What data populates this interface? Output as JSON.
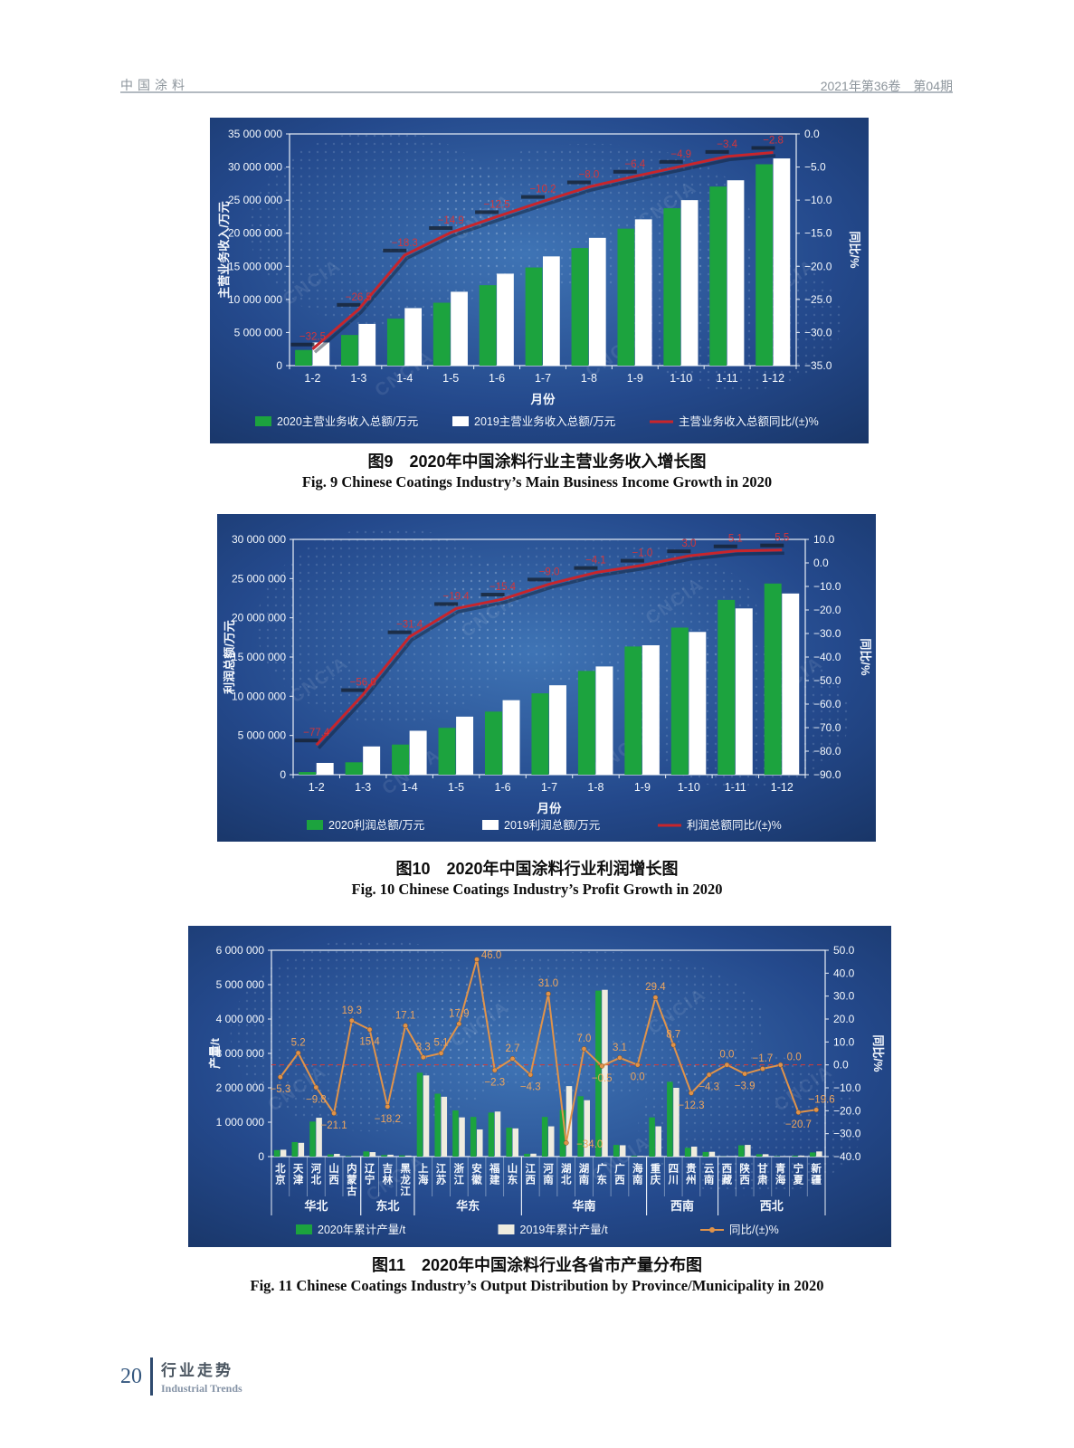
{
  "page": {
    "header": {
      "journal": "中国涂料",
      "issue": "2021年第36卷　第04期"
    },
    "footer": {
      "page_number": "20",
      "section_cn": "行业走势",
      "section_en": "Industrial Trends"
    }
  },
  "watermark": "CNCIA",
  "chart_data": [
    {
      "type": "bar+line",
      "caption_cn": "图9　2020年中国涂料行业主营业务收入增长图",
      "caption_en": "Fig. 9   Chinese Coatings Industry’s Main Business Income Growth in 2020",
      "xlabel": "月份",
      "ylabel_left": "主营业务收入/万元",
      "ylabel_right": "同比/%",
      "ylim_left": [
        0,
        35000000
      ],
      "ytick_step_left": 5000000,
      "ylim_right": [
        -35,
        0
      ],
      "ytick_step_right": 5,
      "categories": [
        "1-2",
        "1-3",
        "1-4",
        "1-5",
        "1-6",
        "1-7",
        "1-8",
        "1-9",
        "1-10",
        "1-11",
        "1-12"
      ],
      "series": [
        {
          "name": "2020主营业务收入总额/万元",
          "type": "bar",
          "color": "#1ca33e",
          "values": [
            2360000,
            4630000,
            7100000,
            9500000,
            12150000,
            14820000,
            17760000,
            20690000,
            23780000,
            27050000,
            30420000
          ]
        },
        {
          "name": "2019主营业务收入总额/万元",
          "type": "bar",
          "color": "#ffffff",
          "values": [
            3500000,
            6300000,
            8690000,
            11160000,
            13890000,
            16500000,
            19300000,
            22100000,
            25000000,
            28000000,
            31300000
          ]
        },
        {
          "name": "主营业务收入总额同比/(±)%",
          "type": "line",
          "color": "#c8252b",
          "values": [
            -32.5,
            -26.5,
            -18.3,
            -14.9,
            -12.5,
            -10.2,
            -8.0,
            -6.4,
            -4.9,
            -3.4,
            -2.8
          ]
        }
      ]
    },
    {
      "type": "bar+line",
      "caption_cn": "图10　2020年中国涂料行业利润增长图",
      "caption_en": "Fig. 10   Chinese Coatings Industry’s Profit Growth in 2020",
      "xlabel": "月份",
      "ylabel_left": "利润总额/万元",
      "ylabel_right": "同比/%",
      "ylim_left": [
        0,
        30000000
      ],
      "ytick_step_left": 5000000,
      "ylim_right": [
        -90,
        10
      ],
      "ytick_step_right": 10,
      "categories": [
        "1-2",
        "1-3",
        "1-4",
        "1-5",
        "1-6",
        "1-7",
        "1-8",
        "1-9",
        "1-10",
        "1-11",
        "1-12"
      ],
      "series": [
        {
          "name": "2020利润总额/万元",
          "type": "bar",
          "color": "#1ca33e",
          "values": [
            340000,
            1580000,
            3840000,
            5970000,
            8040000,
            10370000,
            13230000,
            16340000,
            18750000,
            22280000,
            24370000
          ]
        },
        {
          "name": "2019利润总额/万元",
          "type": "bar",
          "color": "#ffffff",
          "values": [
            1500000,
            3600000,
            5600000,
            7400000,
            9500000,
            11400000,
            13800000,
            16500000,
            18200000,
            21200000,
            23100000
          ]
        },
        {
          "name": "利润总额同比/(±)%",
          "type": "line",
          "color": "#c8252b",
          "values": [
            -77.4,
            -56.0,
            -31.4,
            -19.4,
            -15.4,
            -9.0,
            -4.1,
            -1.0,
            3.0,
            5.1,
            5.5
          ]
        }
      ]
    },
    {
      "type": "bar+line",
      "caption_cn": "图11　2020年中国涂料行业各省市产量分布图",
      "caption_en": "Fig. 11   Chinese Coatings Industry’s Output Distribution by Province/Municipality in 2020",
      "xlabel": "",
      "ylabel_left": "产量/t",
      "ylabel_right": "同比/%",
      "ylim_left": [
        0,
        6000000
      ],
      "ytick_step_left": 1000000,
      "ylim_right": [
        -40,
        50
      ],
      "ytick_step_right": 10,
      "zero_line": true,
      "categories": [
        "北京",
        "天津",
        "河北",
        "山西",
        "内蒙古",
        "辽宁",
        "吉林",
        "黑龙江",
        "上海",
        "江苏",
        "浙江",
        "安徽",
        "福建",
        "山东",
        "江西",
        "河南",
        "湖北",
        "湖南",
        "广东",
        "广西",
        "海南",
        "重庆",
        "四川",
        "贵州",
        "云南",
        "西藏",
        "陕西",
        "甘肃",
        "青海",
        "宁夏",
        "新疆"
      ],
      "groups": [
        {
          "label": "华北",
          "from": 0,
          "to": 4
        },
        {
          "label": "东北",
          "from": 5,
          "to": 7
        },
        {
          "label": "华东",
          "from": 8,
          "to": 13
        },
        {
          "label": "华南",
          "from": 14,
          "to": 20
        },
        {
          "label": "西南",
          "from": 21,
          "to": 24
        },
        {
          "label": "西北",
          "from": 25,
          "to": 30
        }
      ],
      "series": [
        {
          "name": "2020年累计产量/t",
          "type": "bar",
          "color": "#1ca33e",
          "values": [
            189000,
            421000,
            1019000,
            63000,
            14300,
            150000,
            45000,
            35100,
            2438000,
            1829000,
            1344000,
            1153000,
            1280000,
            842000,
            81300,
            1153000,
            1353000,
            1755000,
            4826000,
            340000,
            20000,
            1139000,
            2174000,
            254000,
            134000,
            4000,
            327000,
            68800,
            12000,
            23800,
            120600
          ]
        },
        {
          "name": "2019年累计产量/t",
          "type": "bar",
          "color": "#efecdf",
          "values": [
            200000,
            400000,
            1130000,
            80000,
            12000,
            130000,
            55000,
            30000,
            2360000,
            1740000,
            1140000,
            790000,
            1310000,
            820000,
            85000,
            880000,
            2050000,
            1640000,
            4850000,
            330000,
            20000,
            880000,
            2000000,
            290000,
            140000,
            4000,
            340000,
            70000,
            12000,
            30000,
            150000
          ]
        },
        {
          "name": "同比/(±)%",
          "type": "line",
          "color": "#e0934a",
          "values": [
            -5.3,
            5.2,
            -9.8,
            -21.1,
            19.3,
            15.4,
            -18.2,
            17.1,
            3.3,
            5.1,
            17.9,
            46.0,
            -2.3,
            2.7,
            -4.3,
            31.0,
            -34.0,
            7.0,
            -0.5,
            3.1,
            0.0,
            29.4,
            8.7,
            -12.3,
            -4.3,
            0.0,
            -3.9,
            -1.7,
            0.0,
            -20.7,
            -19.6
          ]
        }
      ],
      "label_side": [
        "below",
        "above",
        "below",
        "below",
        "above",
        "below",
        "below",
        "above",
        "above",
        "above",
        "above",
        "above",
        "below",
        "above",
        "below",
        "above",
        "below",
        "above",
        "below",
        "above",
        "below",
        "above",
        "above",
        "below",
        "below",
        "above",
        "below",
        "above",
        "above",
        "below",
        "above"
      ],
      "label_adjust": {
        "11": [
          16,
          2
        ],
        "16": [
          26,
          -12
        ],
        "28": [
          15,
          3
        ],
        "30": [
          6,
          0
        ]
      }
    }
  ]
}
